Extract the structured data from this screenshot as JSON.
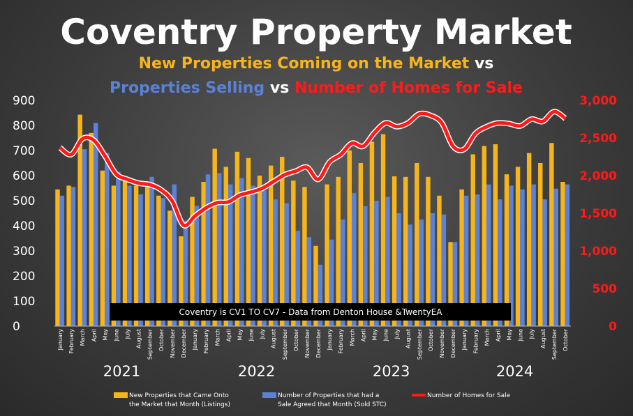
{
  "chart_data": {
    "type": "bar",
    "title": "Coventry Property Market",
    "subtitle_parts": [
      {
        "text": "New Properties Coming on the Market",
        "color": "#f7b51c"
      },
      {
        "text": " vs",
        "color": "#ffffff"
      },
      {
        "text": "Properties Selling",
        "color": "#5b82d6"
      },
      {
        "text": " vs ",
        "color": "#ffffff"
      },
      {
        "text": "Number of Homes for Sale",
        "color": "#ff1a1a"
      }
    ],
    "annotation": "Coventry is CV1 TO CV7 - Data from Denton House &TwentyEA",
    "categories": [
      "January",
      "February",
      "March",
      "April",
      "May",
      "June",
      "July",
      "August",
      "September",
      "October",
      "November",
      "December",
      "January",
      "February",
      "March",
      "April",
      "May",
      "June",
      "July",
      "August",
      "September",
      "October",
      "November",
      "December",
      "January",
      "February",
      "March",
      "April",
      "May",
      "June",
      "July",
      "August",
      "September",
      "October",
      "November",
      "December",
      "January",
      "February",
      "March",
      "April",
      "May",
      "June",
      "July",
      "August",
      "September",
      "October"
    ],
    "years": [
      {
        "label": "2021",
        "start": 0,
        "count": 12
      },
      {
        "label": "2022",
        "start": 12,
        "count": 12
      },
      {
        "label": "2023",
        "start": 24,
        "count": 12
      },
      {
        "label": "2024",
        "start": 36,
        "count": 10
      }
    ],
    "y_left": {
      "ticks": [
        "0",
        "100",
        "200",
        "300",
        "400",
        "500",
        "600",
        "700",
        "800",
        "900"
      ],
      "ylim": [
        0,
        900
      ]
    },
    "y_right": {
      "ticks": [
        "0",
        "500",
        "1,000",
        "1,500",
        "2,000",
        "2,500",
        "3,000"
      ],
      "ylim": [
        0,
        3000
      ]
    },
    "series": [
      {
        "name": "New Properties that Came Onto the Market that Month (Listings)",
        "color": "#f7b51c",
        "axis": "left",
        "values": [
          545,
          560,
          843,
          770,
          620,
          560,
          580,
          560,
          560,
          520,
          460,
          358,
          515,
          575,
          707,
          635,
          695,
          670,
          600,
          640,
          675,
          580,
          555,
          320,
          565,
          595,
          700,
          650,
          735,
          765,
          597,
          595,
          650,
          595,
          520,
          335,
          545,
          685,
          718,
          725,
          605,
          635,
          690,
          650,
          730,
          575
        ]
      },
      {
        "name": "Number of Properties that had a Sale Agreed that Month (Sold STC)",
        "color": "#5b82d6",
        "axis": "left",
        "values": [
          520,
          555,
          705,
          810,
          690,
          615,
          560,
          525,
          595,
          510,
          565,
          420,
          480,
          605,
          610,
          565,
          590,
          560,
          540,
          505,
          490,
          380,
          355,
          245,
          345,
          425,
          530,
          478,
          500,
          515,
          450,
          405,
          425,
          450,
          445,
          335,
          520,
          525,
          565,
          505,
          560,
          545,
          565,
          505,
          548,
          565
        ]
      },
      {
        "name": "Number of Homes for Sale",
        "color": "#ff1a1a",
        "axis": "right",
        "values": [
          2370,
          2280,
          2490,
          2470,
          2260,
          2020,
          1950,
          1900,
          1880,
          1810,
          1660,
          1340,
          1460,
          1570,
          1640,
          1650,
          1740,
          1780,
          1830,
          1920,
          2010,
          2060,
          2110,
          1950,
          2180,
          2280,
          2430,
          2390,
          2570,
          2700,
          2650,
          2700,
          2820,
          2800,
          2700,
          2390,
          2350,
          2560,
          2650,
          2700,
          2690,
          2660,
          2750,
          2720,
          2850,
          2760
        ]
      }
    ],
    "legend_lines": [
      [
        "New Properties that Came Onto",
        "the Market that Month (Listings)"
      ],
      [
        "Number of Properties that had a",
        "Sale Agreed that Month (Sold STC)"
      ],
      [
        "Number of Homes for Sale"
      ]
    ],
    "legend_position": "bottom",
    "grid": false
  }
}
